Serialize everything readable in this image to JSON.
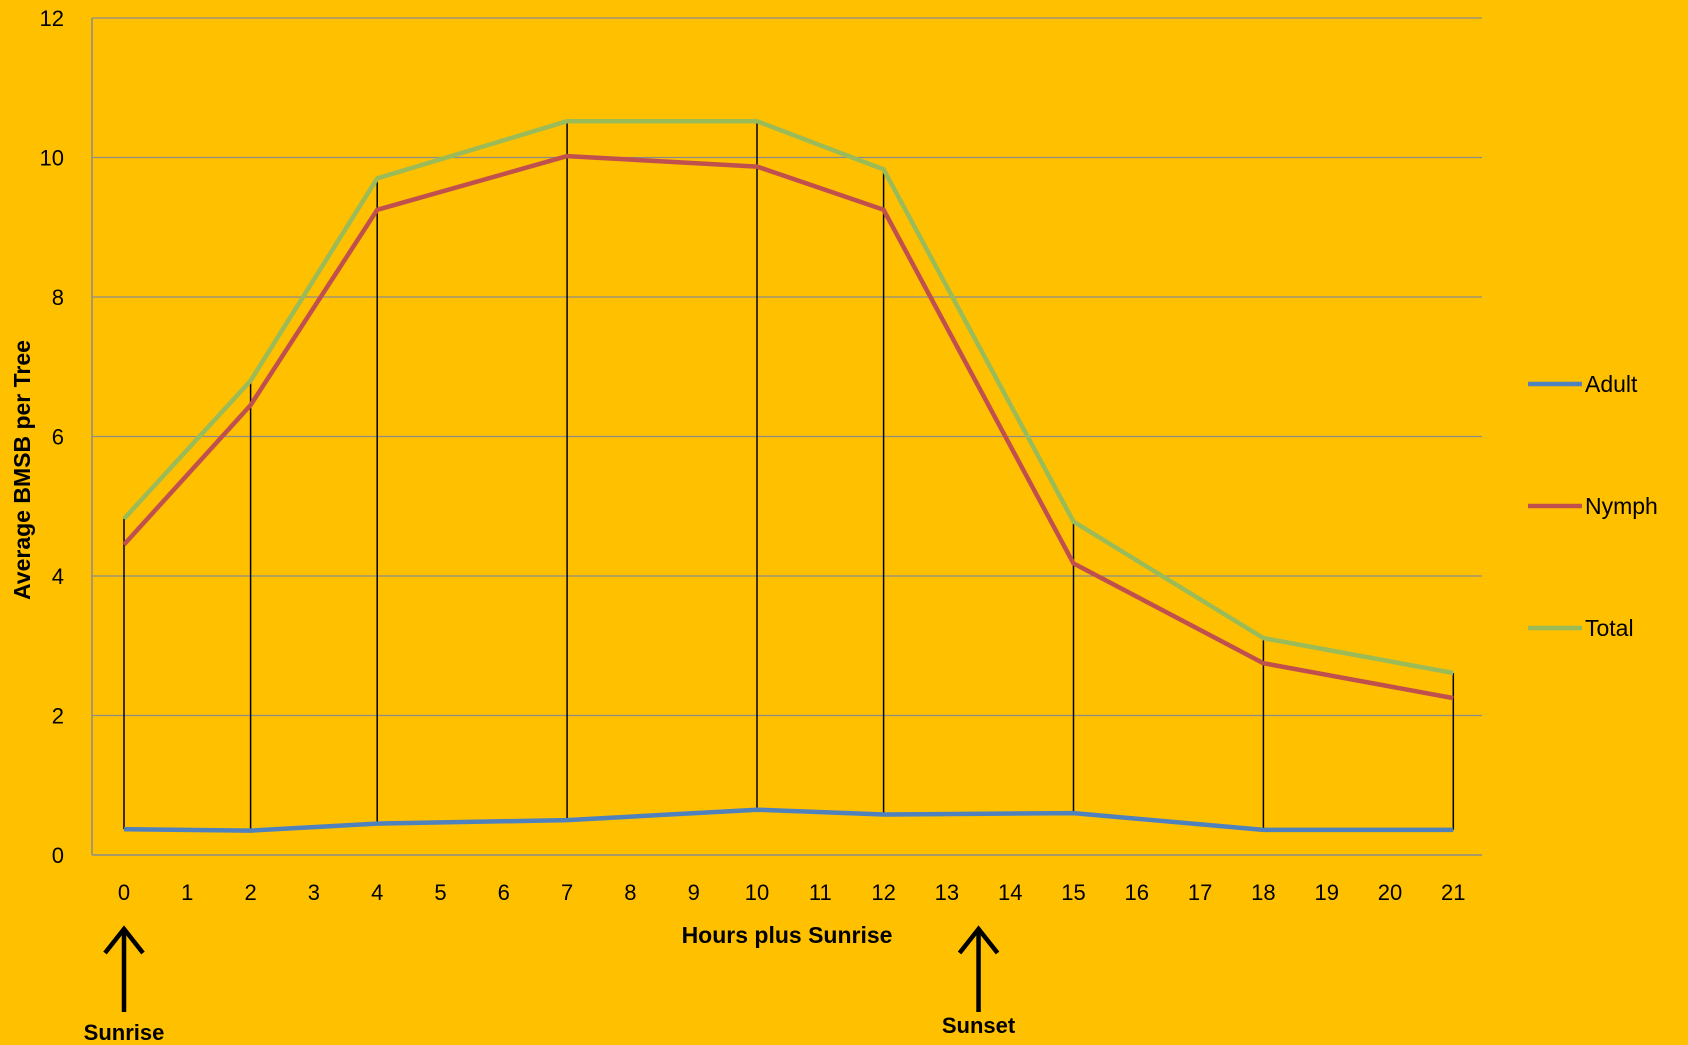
{
  "chart_data": {
    "type": "line",
    "title": "",
    "xlabel": "Hours plus Sunrise",
    "ylabel": "Average BMSB per Tree",
    "ylim": [
      0,
      12
    ],
    "yticks": [
      0,
      2,
      4,
      6,
      8,
      10,
      12
    ],
    "categories": [
      "0",
      "1",
      "2",
      "3",
      "4",
      "5",
      "6",
      "7",
      "8",
      "9",
      "10",
      "11",
      "12",
      "13",
      "14",
      "15",
      "16",
      "17",
      "18",
      "19",
      "20",
      "21"
    ],
    "x": [
      0,
      2,
      4,
      7,
      10,
      12,
      15,
      18,
      21
    ],
    "series": [
      {
        "name": "Adult",
        "color": "#4F81BD",
        "values": [
          0.37,
          0.35,
          0.45,
          0.5,
          0.65,
          0.58,
          0.6,
          0.36,
          0.36
        ]
      },
      {
        "name": "Nymph",
        "color": "#C0504D",
        "values": [
          4.45,
          6.45,
          9.25,
          10.02,
          9.87,
          9.25,
          4.18,
          2.75,
          2.25
        ]
      },
      {
        "name": "Total",
        "color": "#9BBB59",
        "values": [
          4.82,
          6.8,
          9.7,
          10.52,
          10.52,
          9.83,
          4.78,
          3.11,
          2.61
        ]
      }
    ],
    "grid": true,
    "legend_position": "right",
    "annotations": [
      {
        "label": "Sunrise",
        "x": 0
      },
      {
        "label": "Sunset",
        "x": 13.5
      }
    ]
  }
}
